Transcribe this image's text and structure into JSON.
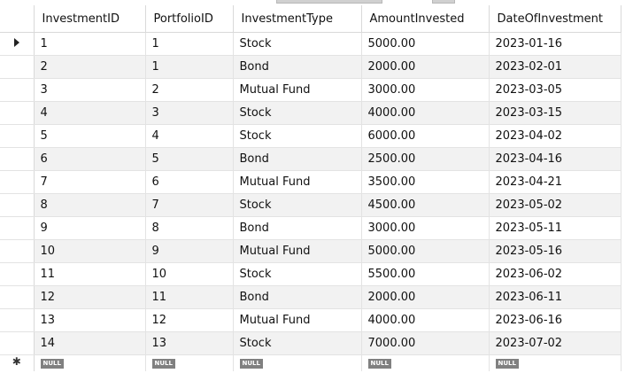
{
  "grid": {
    "columns": [
      "InvestmentID",
      "PortfolioID",
      "InvestmentType",
      "AmountInvested",
      "DateOfInvestment"
    ],
    "rows": [
      [
        "1",
        "1",
        "Stock",
        "5000.00",
        "2023-01-16"
      ],
      [
        "2",
        "1",
        "Bond",
        "2000.00",
        "2023-02-01"
      ],
      [
        "3",
        "2",
        "Mutual Fund",
        "3000.00",
        "2023-03-05"
      ],
      [
        "4",
        "3",
        "Stock",
        "4000.00",
        "2023-03-15"
      ],
      [
        "5",
        "4",
        "Stock",
        "6000.00",
        "2023-04-02"
      ],
      [
        "6",
        "5",
        "Bond",
        "2500.00",
        "2023-04-16"
      ],
      [
        "7",
        "6",
        "Mutual Fund",
        "3500.00",
        "2023-04-21"
      ],
      [
        "8",
        "7",
        "Stock",
        "4500.00",
        "2023-05-02"
      ],
      [
        "9",
        "8",
        "Bond",
        "3000.00",
        "2023-05-11"
      ],
      [
        "10",
        "9",
        "Mutual Fund",
        "5000.00",
        "2023-05-16"
      ],
      [
        "11",
        "10",
        "Stock",
        "5500.00",
        "2023-06-02"
      ],
      [
        "12",
        "11",
        "Bond",
        "2000.00",
        "2023-06-11"
      ],
      [
        "13",
        "12",
        "Mutual Fund",
        "4000.00",
        "2023-06-16"
      ],
      [
        "14",
        "13",
        "Stock",
        "7000.00",
        "2023-07-02"
      ]
    ],
    "new_row": [
      "NULL",
      "NULL",
      "NULL",
      "NULL",
      "NULL"
    ],
    "current_row_index": 0,
    "icons": {
      "current_row": "current-row-arrow-icon",
      "new_row": "new-row-asterisk-icon"
    },
    "colors": {
      "alt_row": "#f2f2f2",
      "null_badge": "#808080",
      "grid_line": "#e3e3e3"
    }
  }
}
